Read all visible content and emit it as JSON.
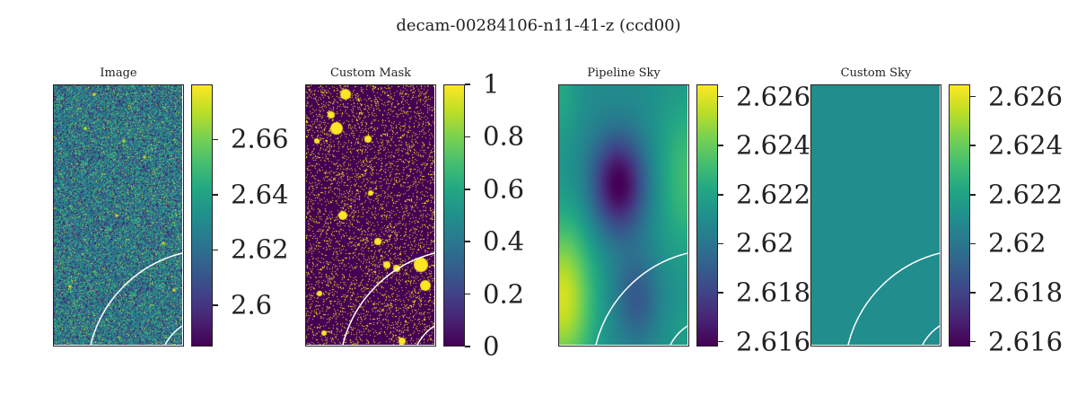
{
  "figure": {
    "title": "decam-00284106-n11-41-z (ccd00)"
  },
  "chart_data": [
    {
      "type": "heatmap",
      "title": "Image",
      "colormap": "viridis",
      "colorbar": {
        "min": 2.585,
        "max": 2.68,
        "ticks": [
          2.6,
          2.62,
          2.64,
          2.66
        ],
        "ticklabels": [
          "2.6",
          "2.62",
          "2.64",
          "2.66"
        ]
      },
      "content": "noisy sky image with scattered sources",
      "overlay": "white quarter-circle arcs"
    },
    {
      "type": "heatmap",
      "title": "Custom Mask",
      "colormap": "viridis",
      "colorbar": {
        "min": 0,
        "max": 1,
        "ticks": [
          0,
          0.2,
          0.4,
          0.6,
          0.8,
          1
        ],
        "ticklabels": [
          "0",
          "0.2",
          "0.4",
          "0.6",
          "0.8",
          "1"
        ]
      },
      "content": "binary mask: masked sources (1) on background (0)",
      "overlay": "white quarter-circle arcs"
    },
    {
      "type": "heatmap",
      "title": "Pipeline Sky",
      "colormap": "viridis",
      "colorbar": {
        "min": 2.6158,
        "max": 2.6265,
        "ticks": [
          2.616,
          2.618,
          2.62,
          2.622,
          2.624,
          2.626
        ],
        "ticklabels": [
          "2.616",
          "2.618",
          "2.62",
          "2.622",
          "2.624",
          "2.626"
        ]
      },
      "content": "smooth sky model, low near upper-center, high at left",
      "overlay": "white quarter-circle arcs"
    },
    {
      "type": "heatmap",
      "title": "Custom Sky",
      "colormap": "viridis",
      "colorbar": {
        "min": 2.6158,
        "max": 2.6265,
        "ticks": [
          2.616,
          2.618,
          2.62,
          2.622,
          2.624,
          2.626
        ],
        "ticklabels": [
          "2.616",
          "2.618",
          "2.62",
          "2.622",
          "2.624",
          "2.626"
        ]
      },
      "content": "constant sky level",
      "value": 2.621,
      "overlay": "white quarter-circle arcs"
    }
  ]
}
